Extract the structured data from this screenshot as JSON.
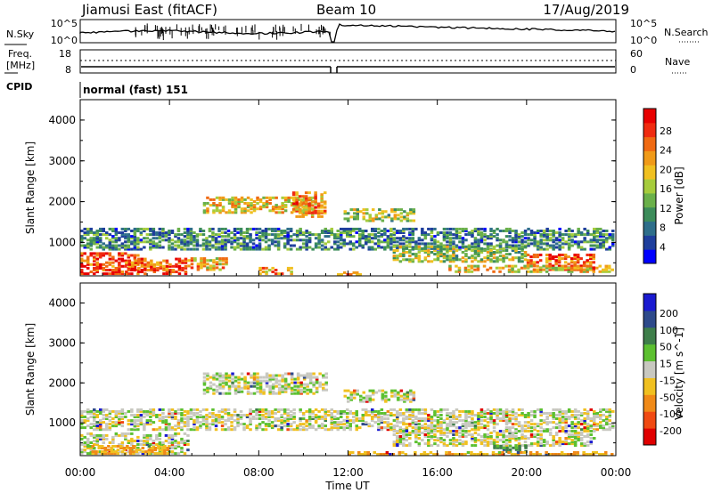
{
  "header": {
    "station": "Jiamusi East (fitACF)",
    "beam": "Beam 10",
    "date": "17/Aug/2019"
  },
  "panels": {
    "noise": {
      "left_label": "N.Sky",
      "left_ticks": [
        "10^5",
        "10^0"
      ],
      "right_label": "N.Search",
      "right_ticks": [
        "10^5",
        "10^0"
      ]
    },
    "freq": {
      "left_label_1": "Freq.",
      "left_label_2": "[MHz]",
      "left_ticks": [
        "18",
        "8"
      ],
      "right_label": "Nave",
      "right_ticks": [
        "60",
        "0"
      ]
    },
    "cpid": {
      "label": "CPID",
      "value": "normal (fast) 151"
    }
  },
  "chart_data": [
    {
      "type": "heatmap",
      "title": "",
      "xlabel": "",
      "ylabel": "Slant Range [km]",
      "xlim": [
        "00:00",
        "00:00"
      ],
      "ylim": [
        180,
        4500
      ],
      "y_ticks": [
        "1000",
        "2000",
        "3000",
        "4000"
      ],
      "colorbar": {
        "label": "Power [dB]",
        "ticks": [
          "28",
          "24",
          "20",
          "16",
          "12",
          "8",
          "4"
        ],
        "colors": [
          "#0000ff",
          "#1e3e9c",
          "#2e6e8a",
          "#3c8c5a",
          "#6ab04a",
          "#a6cc3c",
          "#f0c020",
          "#f09a18",
          "#f06a12",
          "#f02b10",
          "#e80000"
        ]
      },
      "regions": [
        {
          "t0": 0.0,
          "t1": 2.6,
          "r0": 200,
          "r1": 700,
          "value": 26
        },
        {
          "t0": 2.0,
          "t1": 4.8,
          "r0": 200,
          "r1": 600,
          "value": 25
        },
        {
          "t0": 4.8,
          "t1": 6.5,
          "r0": 300,
          "r1": 600,
          "value": 20
        },
        {
          "t0": 5.5,
          "t1": 10.5,
          "r0": 1700,
          "r1": 2100,
          "value": 18
        },
        {
          "t0": 9.5,
          "t1": 11.0,
          "r0": 1600,
          "r1": 2200,
          "value": 22
        },
        {
          "t0": 11.8,
          "t1": 15.0,
          "r0": 1500,
          "r1": 1800,
          "value": 14
        },
        {
          "t0": 0.0,
          "t1": 24.0,
          "r0": 800,
          "r1": 1300,
          "value": 8
        },
        {
          "t0": 14.0,
          "t1": 20.0,
          "r0": 500,
          "r1": 900,
          "value": 14
        },
        {
          "t0": 20.0,
          "t1": 23.0,
          "r0": 300,
          "r1": 700,
          "value": 24
        },
        {
          "t0": 16.5,
          "t1": 24.0,
          "r0": 250,
          "r1": 400,
          "value": 18
        },
        {
          "t0": 8.0,
          "t1": 9.5,
          "r0": 200,
          "r1": 350,
          "value": 22
        },
        {
          "t0": 11.5,
          "t1": 12.5,
          "r0": 180,
          "r1": 260,
          "value": 20
        }
      ]
    },
    {
      "type": "heatmap",
      "title": "",
      "xlabel": "Time UT",
      "ylabel": "Slant Range [km]",
      "xlim": [
        "00:00",
        "00:00"
      ],
      "ylim": [
        180,
        4500
      ],
      "x_ticks": [
        "00:00",
        "04:00",
        "08:00",
        "12:00",
        "16:00",
        "20:00",
        "00:00"
      ],
      "y_ticks": [
        "1000",
        "2000",
        "3000",
        "4000"
      ],
      "colorbar": {
        "label": "Velocity [m s^-1]",
        "ticks": [
          "200",
          "100",
          "50",
          "15",
          "-15",
          "-50",
          "-100",
          "-200"
        ],
        "colors": [
          "#1a1ad0",
          "#2e4a8a",
          "#3e7e4a",
          "#5cc030",
          "#c8c8c0",
          "#f0c020",
          "#f08a18",
          "#f04a12",
          "#e00000"
        ]
      },
      "regions": [
        {
          "t0": 0.0,
          "t1": 4.8,
          "r0": 200,
          "r1": 700,
          "value": 0
        },
        {
          "t0": 0.5,
          "t1": 4.0,
          "r0": 200,
          "r1": 400,
          "value": -60
        },
        {
          "t0": 5.5,
          "t1": 11.0,
          "r0": 1700,
          "r1": 2200,
          "value": 0
        },
        {
          "t0": 11.8,
          "t1": 15.0,
          "r0": 1500,
          "r1": 1800,
          "value": 0
        },
        {
          "t0": 0.0,
          "t1": 24.0,
          "r0": 800,
          "r1": 1300,
          "value": 0
        },
        {
          "t0": 14.0,
          "t1": 23.0,
          "r0": 400,
          "r1": 800,
          "value": 0
        },
        {
          "t0": 18.5,
          "t1": 20.0,
          "r0": 250,
          "r1": 400,
          "value": 60
        },
        {
          "t0": 12.0,
          "t1": 24.0,
          "r0": 180,
          "r1": 260,
          "value": -60
        }
      ]
    }
  ]
}
